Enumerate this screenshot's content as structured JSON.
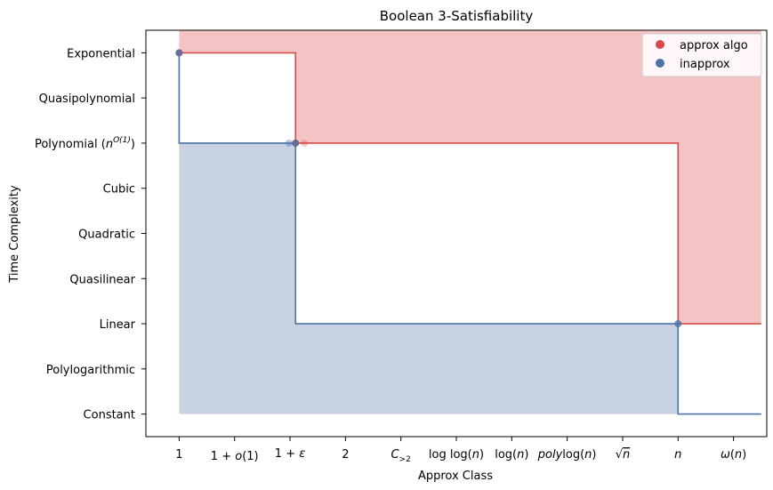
{
  "chart_data": {
    "type": "line",
    "title": "Boolean 3-Satisfiability",
    "xlabel": "Approx Class",
    "ylabel": "Time Complexity",
    "x_categories": [
      "1",
      "1 + o(1)",
      "1 + ε",
      "2",
      "C>2",
      "log log(n)",
      "log(n)",
      "polylog(n)",
      "√n",
      "n",
      "ω(n)"
    ],
    "y_categories": [
      "Constant",
      "Polylogarithmic",
      "Linear",
      "Quasilinear",
      "Quadratic",
      "Cubic",
      "Polynomial (n^O(1))",
      "Quasipolynomial",
      "Exponential"
    ],
    "xlim": [
      -0.6,
      10.6
    ],
    "ylim": [
      -0.5,
      8.5
    ],
    "legend_position": "top-right",
    "grid": false,
    "series": [
      {
        "name": "approx algo",
        "color": "#d84a4a",
        "fill_color": "#f4c4c5",
        "fill_to_y": 8.5,
        "step_x": [
          0,
          2.1,
          2.1,
          9,
          9,
          10.5
        ],
        "step_y": [
          8,
          8,
          6,
          6,
          2,
          2
        ],
        "points": [
          {
            "x": 0,
            "y": 8
          },
          {
            "x": 2.1,
            "y": 6
          }
        ]
      },
      {
        "name": "inapprox",
        "color": "#4c72a8",
        "fill_color": "#c9d2e3",
        "fill_to_y": 0,
        "step_x": [
          0,
          0,
          2.1,
          2.1,
          9,
          9,
          10.5
        ],
        "step_y": [
          8,
          6,
          6,
          2,
          2,
          0,
          0
        ],
        "points": [
          {
            "x": 0,
            "y": 8
          },
          {
            "x": 2.1,
            "y": 6
          },
          {
            "x": 9,
            "y": 2
          }
        ]
      }
    ]
  }
}
